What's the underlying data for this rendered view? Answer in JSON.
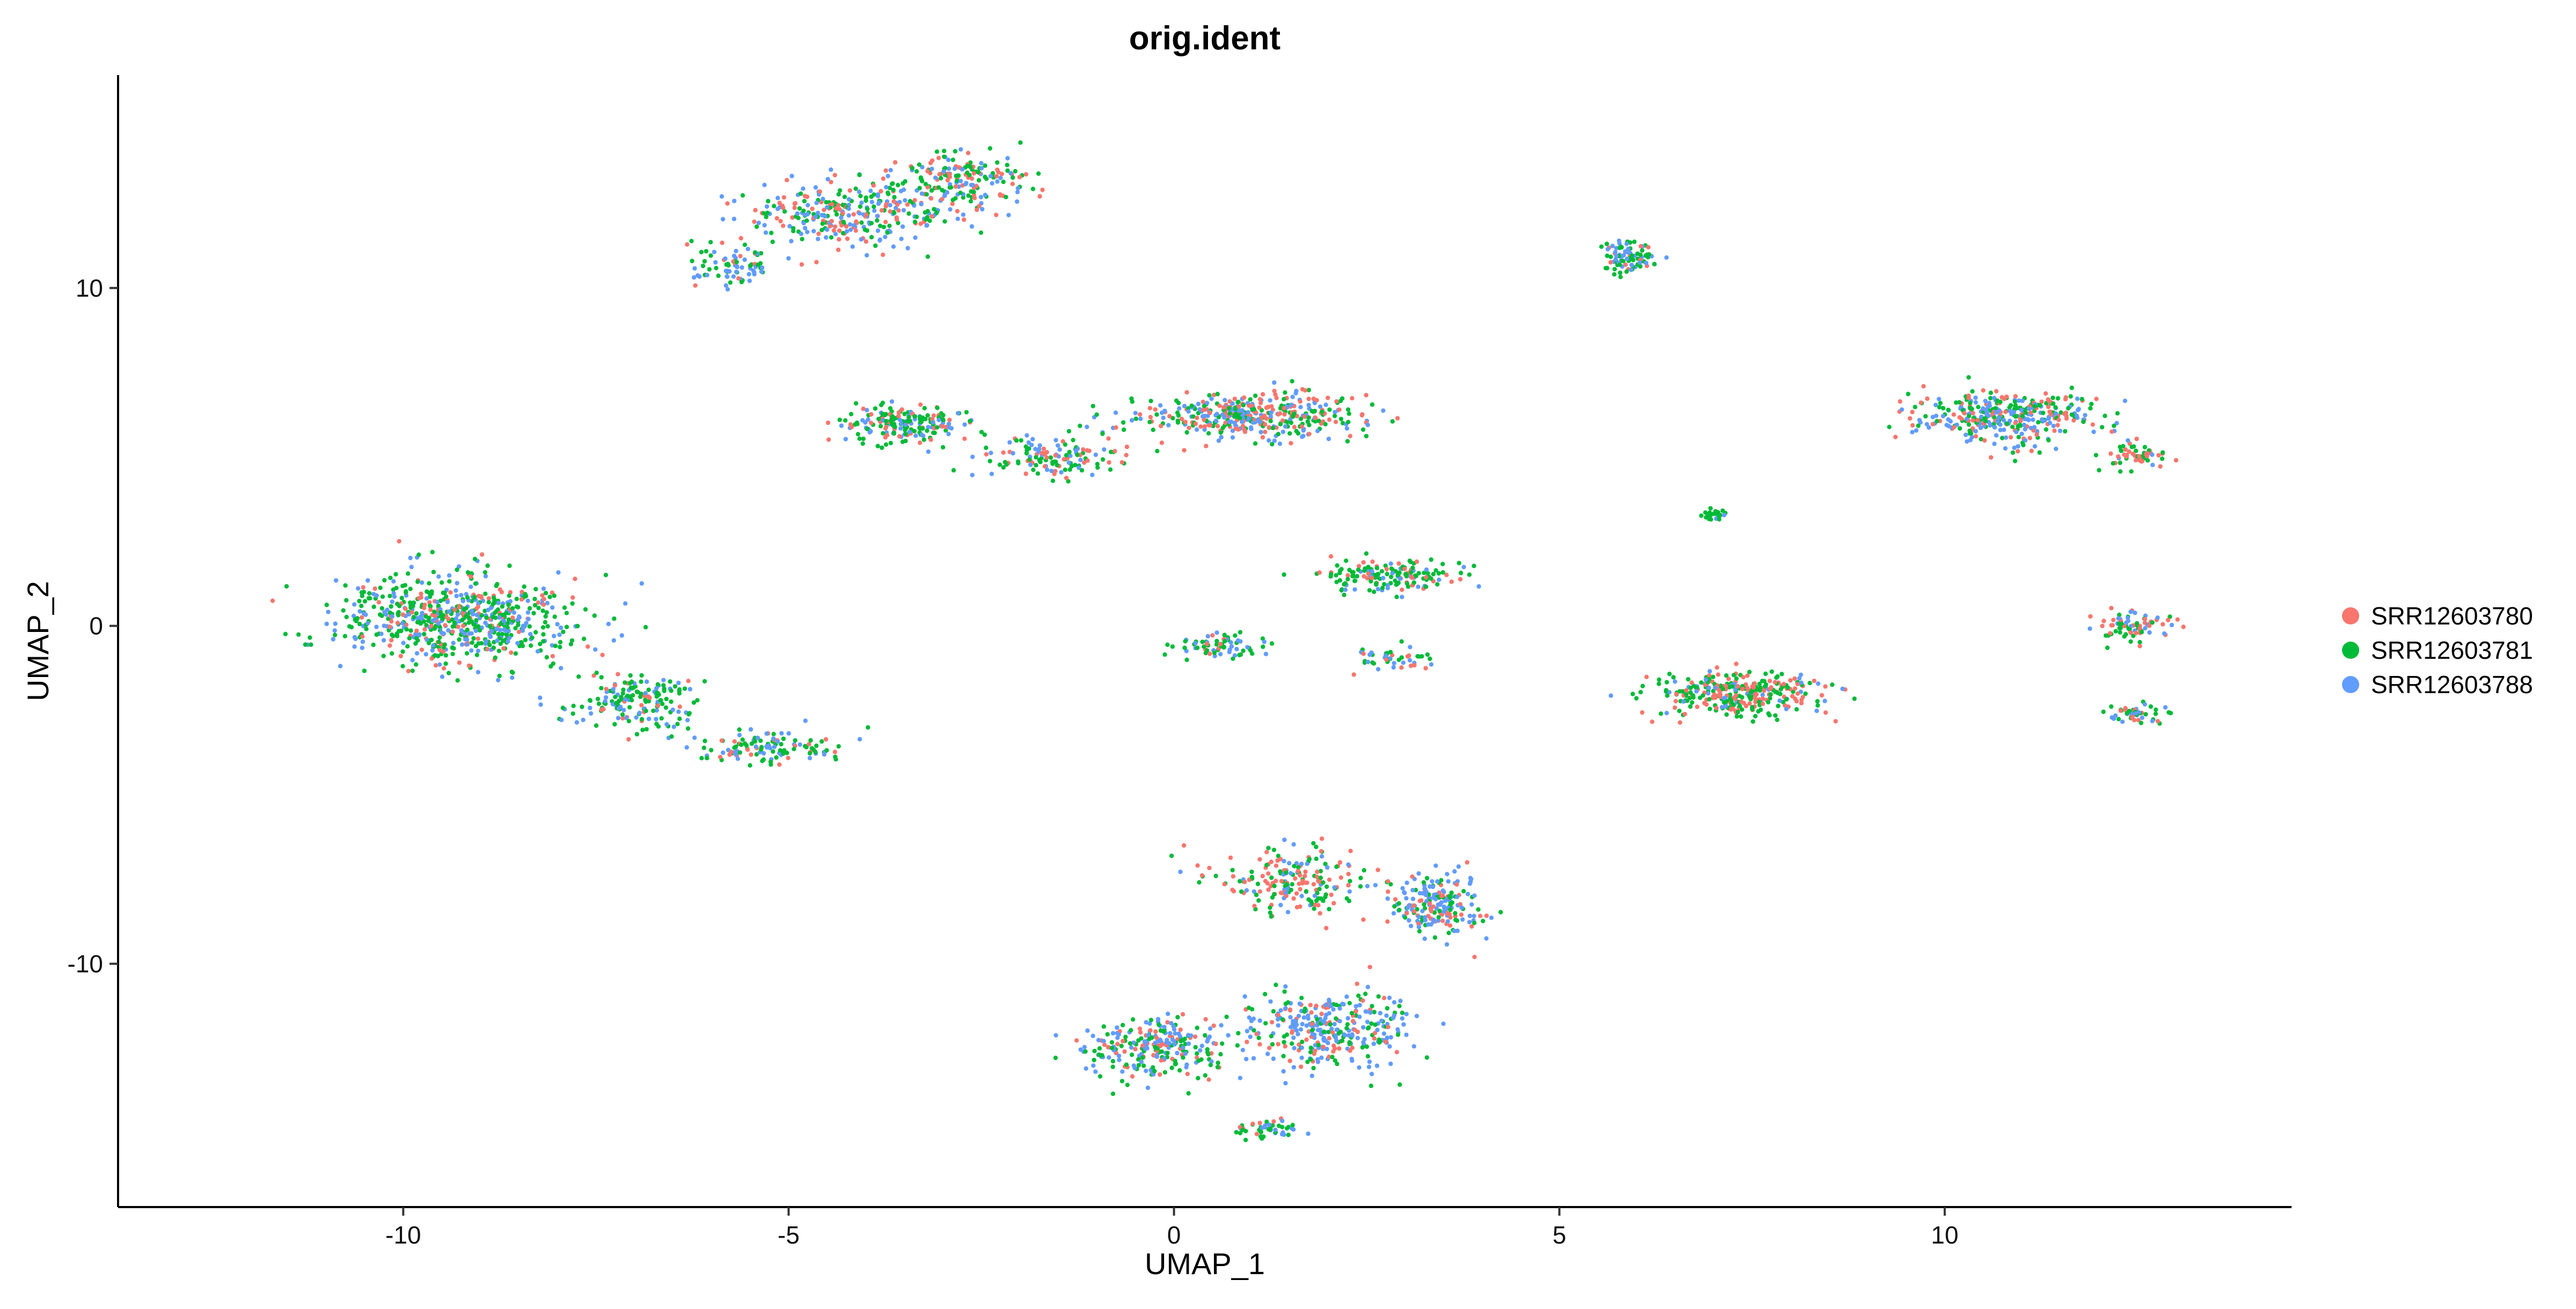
{
  "chart_data": {
    "type": "scatter",
    "title": "orig.ident",
    "xlabel": "UMAP_1",
    "ylabel": "UMAP_2",
    "xlim": [
      -13.7,
      14.5
    ],
    "ylim": [
      -17.2,
      16.3
    ],
    "x_ticks": [
      -10,
      -5,
      0,
      5,
      10
    ],
    "y_ticks": [
      10,
      0,
      -10
    ],
    "x_tick_labels": [
      "-10",
      "-5",
      "0",
      "5",
      "10"
    ],
    "y_tick_labels": [
      "10",
      "0",
      "-10"
    ],
    "legend_position": "right",
    "grid": false,
    "series": [
      {
        "name": "SRR12603780",
        "color": "#F8766D"
      },
      {
        "name": "SRR12603781",
        "color": "#00BA38"
      },
      {
        "name": "SRR12603788",
        "color": "#619CFF"
      }
    ],
    "clusters": [
      {
        "center": [
          -9.3,
          0.2
        ],
        "spread": [
          1.4,
          1.2
        ],
        "n": 700,
        "mix": [
          0.18,
          0.52,
          0.3
        ]
      },
      {
        "center": [
          -7.0,
          -2.2
        ],
        "spread": [
          0.8,
          0.8
        ],
        "n": 180,
        "mix": [
          0.15,
          0.55,
          0.3
        ]
      },
      {
        "center": [
          -5.2,
          -3.6
        ],
        "spread": [
          0.9,
          0.45
        ],
        "n": 120,
        "mix": [
          0.15,
          0.45,
          0.4
        ]
      },
      {
        "center": [
          -4.2,
          12.2
        ],
        "spread": [
          1.3,
          0.9
        ],
        "n": 320,
        "mix": [
          0.3,
          0.35,
          0.35
        ]
      },
      {
        "center": [
          -2.8,
          13.2
        ],
        "spread": [
          0.8,
          0.8
        ],
        "n": 180,
        "mix": [
          0.25,
          0.45,
          0.3
        ]
      },
      {
        "center": [
          -5.7,
          10.6
        ],
        "spread": [
          0.5,
          0.5
        ],
        "n": 80,
        "mix": [
          0.2,
          0.4,
          0.4
        ]
      },
      {
        "center": [
          -3.5,
          6.0
        ],
        "spread": [
          0.8,
          0.5
        ],
        "n": 200,
        "mix": [
          0.25,
          0.45,
          0.3
        ]
      },
      {
        "center": [
          -1.6,
          5.0
        ],
        "spread": [
          0.9,
          0.6
        ],
        "n": 140,
        "mix": [
          0.3,
          0.45,
          0.25
        ]
      },
      {
        "center": [
          1.0,
          6.2
        ],
        "spread": [
          1.3,
          0.6
        ],
        "n": 420,
        "mix": [
          0.3,
          0.4,
          0.3
        ]
      },
      {
        "center": [
          5.9,
          10.9
        ],
        "spread": [
          0.3,
          0.4
        ],
        "n": 90,
        "mix": [
          0.1,
          0.55,
          0.35
        ]
      },
      {
        "center": [
          10.8,
          6.2
        ],
        "spread": [
          1.0,
          0.7
        ],
        "n": 380,
        "mix": [
          0.25,
          0.35,
          0.4
        ]
      },
      {
        "center": [
          12.5,
          5.0
        ],
        "spread": [
          0.4,
          0.4
        ],
        "n": 60,
        "mix": [
          0.55,
          0.3,
          0.15
        ]
      },
      {
        "center": [
          7.0,
          3.3
        ],
        "spread": [
          0.15,
          0.15
        ],
        "n": 25,
        "mix": [
          0.05,
          0.9,
          0.05
        ]
      },
      {
        "center": [
          2.8,
          1.5
        ],
        "spread": [
          0.8,
          0.4
        ],
        "n": 170,
        "mix": [
          0.2,
          0.65,
          0.15
        ]
      },
      {
        "center": [
          0.6,
          -0.6
        ],
        "spread": [
          0.5,
          0.3
        ],
        "n": 70,
        "mix": [
          0.15,
          0.55,
          0.3
        ]
      },
      {
        "center": [
          2.8,
          -1.0
        ],
        "spread": [
          0.5,
          0.3
        ],
        "n": 50,
        "mix": [
          0.2,
          0.5,
          0.3
        ]
      },
      {
        "center": [
          7.3,
          -2.0
        ],
        "spread": [
          1.0,
          0.6
        ],
        "n": 330,
        "mix": [
          0.4,
          0.45,
          0.15
        ]
      },
      {
        "center": [
          12.5,
          0.0
        ],
        "spread": [
          0.4,
          0.4
        ],
        "n": 80,
        "mix": [
          0.3,
          0.5,
          0.2
        ]
      },
      {
        "center": [
          12.5,
          -2.6
        ],
        "spread": [
          0.3,
          0.3
        ],
        "n": 50,
        "mix": [
          0.2,
          0.5,
          0.3
        ]
      },
      {
        "center": [
          1.5,
          -7.5
        ],
        "spread": [
          1.0,
          0.9
        ],
        "n": 200,
        "mix": [
          0.45,
          0.35,
          0.2
        ]
      },
      {
        "center": [
          3.4,
          -8.2
        ],
        "spread": [
          0.6,
          0.9
        ],
        "n": 200,
        "mix": [
          0.25,
          0.3,
          0.45
        ]
      },
      {
        "center": [
          -0.2,
          -12.5
        ],
        "spread": [
          0.8,
          0.8
        ],
        "n": 260,
        "mix": [
          0.25,
          0.35,
          0.4
        ]
      },
      {
        "center": [
          2.0,
          -12.0
        ],
        "spread": [
          1.0,
          1.0
        ],
        "n": 340,
        "mix": [
          0.25,
          0.25,
          0.5
        ]
      },
      {
        "center": [
          1.2,
          -14.9
        ],
        "spread": [
          0.35,
          0.3
        ],
        "n": 50,
        "mix": [
          0.15,
          0.6,
          0.25
        ]
      }
    ]
  }
}
